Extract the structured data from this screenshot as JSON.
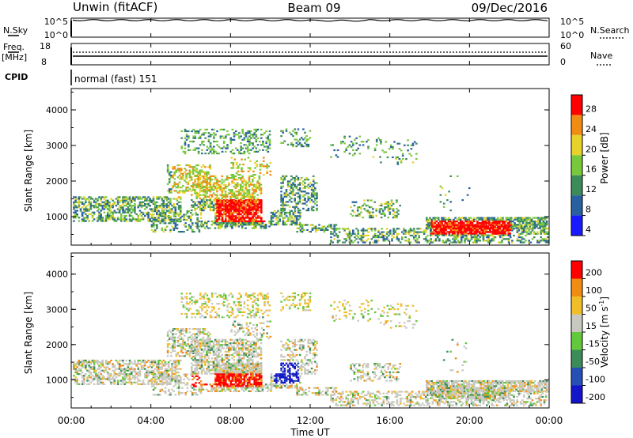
{
  "header": {
    "left": "Unwin (fitACF)",
    "center": "Beam 09",
    "right": "09/Dec/2016"
  },
  "noise_panel": {
    "left_label": "N.Sky",
    "right_label": "N.Search",
    "ticks_left": [
      "10^5",
      "10^0"
    ],
    "ticks_right": [
      "10^5",
      "10^0"
    ]
  },
  "freq_panel": {
    "left_label": "Freq.",
    "left_unit": "[MHz]",
    "left_ticks": [
      "18",
      "8"
    ],
    "right_label": "Nave",
    "right_ticks": [
      "60",
      "0"
    ]
  },
  "cpid_panel": {
    "label": "CPID",
    "value": "normal (fast) 151"
  },
  "chart_data": [
    {
      "type": "heatmap",
      "name": "power",
      "ylabel": "Slant Range [km]",
      "yticks": [
        "4000",
        "3000",
        "2000",
        "1000"
      ],
      "ylim": [
        200,
        4600
      ],
      "colorbar_label": "Power [dB]",
      "colorbar_ticks": [
        "28",
        "24",
        "20",
        "16",
        "12",
        "8",
        "4"
      ],
      "colors": [
        "#1a1aff",
        "#2860a0",
        "#3c8c5a",
        "#78c83c",
        "#e6d22a",
        "#f08c14",
        "#ff0000"
      ]
    },
    {
      "type": "heatmap",
      "name": "velocity",
      "ylabel": "Slant Range [km]",
      "yticks": [
        "4000",
        "3000",
        "2000",
        "1000"
      ],
      "ylim": [
        200,
        4600
      ],
      "colorbar_label": "Velocity [m s",
      "colorbar_label_sup": "-1",
      "colorbar_label_end": "]",
      "colorbar_ticks": [
        "200",
        "100",
        "50",
        "15",
        "-15",
        "-50",
        "-100",
        "-200"
      ],
      "colors": [
        "#1414c8",
        "#2850b4",
        "#3c8c5a",
        "#64c83c",
        "#c8c8c0",
        "#f0be28",
        "#f08c14",
        "#ff0000"
      ]
    }
  ],
  "time_axis": {
    "ticks": [
      "00:00",
      "04:00",
      "08:00",
      "12:00",
      "16:00",
      "20:00",
      "00:00"
    ],
    "label": "Time UT"
  }
}
